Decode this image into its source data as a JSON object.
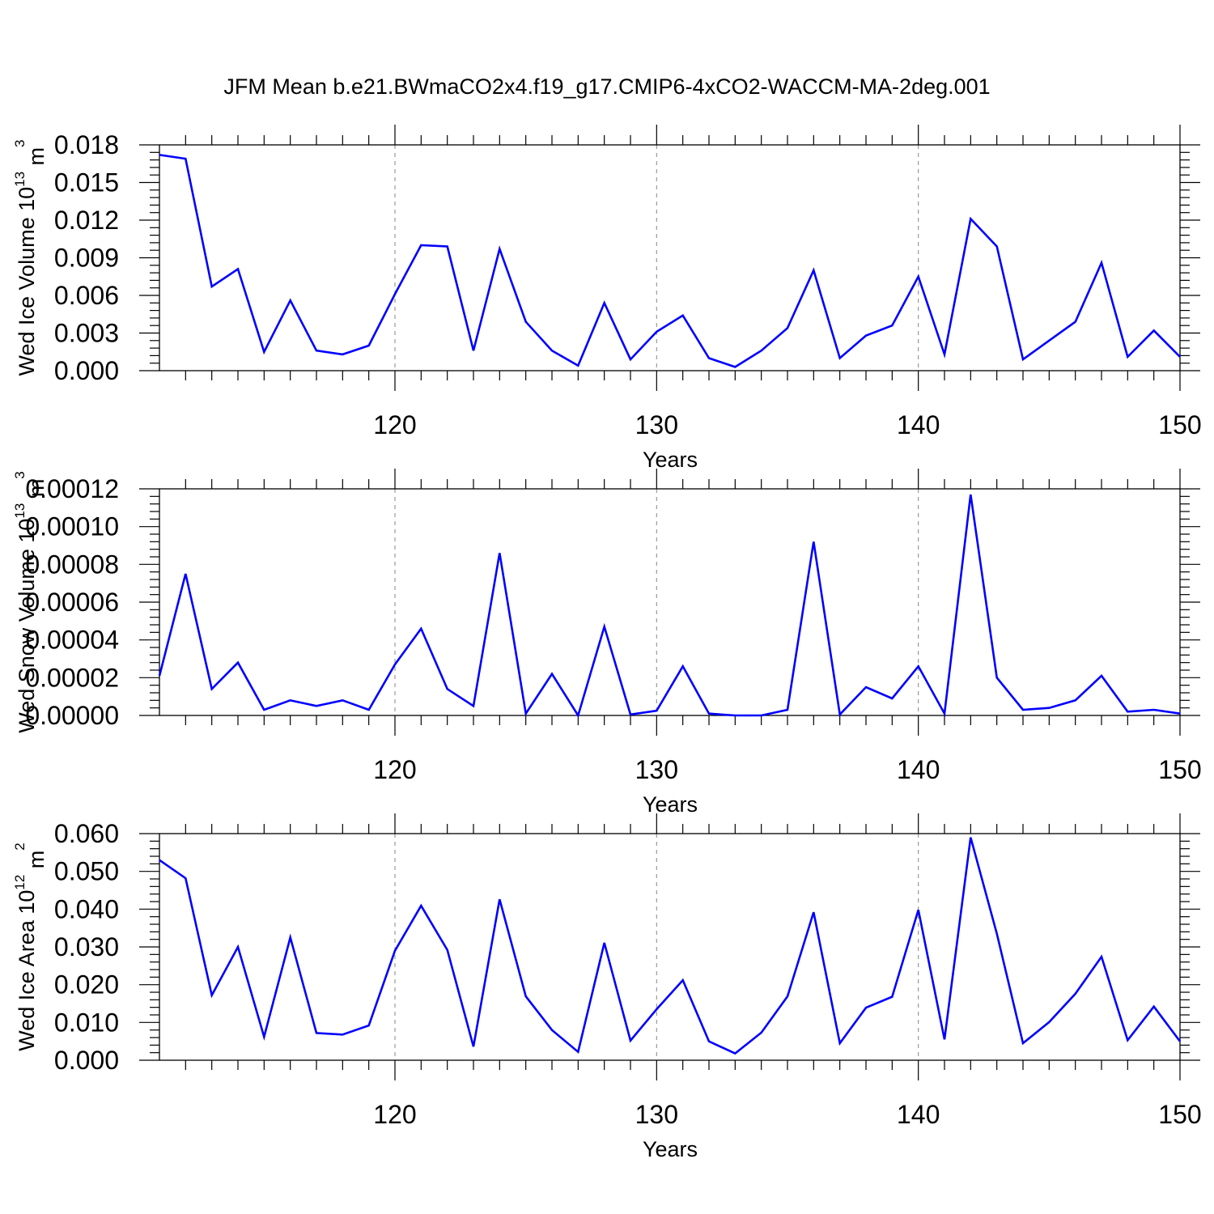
{
  "page_title": "JFM Mean b.e21.BWmaCO2x4.f19_g17.CMIP6-4xCO2-WACCM-MA-2deg.001",
  "colors": {
    "series": "#0000ff",
    "axes": "#000000",
    "grid": "#999999"
  },
  "chart_data": [
    {
      "type": "line",
      "ylabel": "Wed Ice Volume 10",
      "ylabel_sup": "13",
      "ylabel_unit": " m",
      "ylabel_unit_sup": "3",
      "xlabel": "Years",
      "xlim": [
        111,
        150
      ],
      "ylim": [
        0,
        0.018
      ],
      "yticks": [
        "0.000",
        "0.003",
        "0.006",
        "0.009",
        "0.012",
        "0.015",
        "0.018"
      ],
      "xticks": [
        "120",
        "130",
        "140",
        "150"
      ],
      "grid": "dashed vertical at major x ticks",
      "x": [
        111,
        112,
        113,
        114,
        115,
        116,
        117,
        118,
        119,
        120,
        121,
        122,
        123,
        124,
        125,
        126,
        127,
        128,
        129,
        130,
        131,
        132,
        133,
        134,
        135,
        136,
        137,
        138,
        139,
        140,
        141,
        142,
        143,
        144,
        145,
        146,
        147,
        148,
        149,
        150
      ],
      "values": [
        0.0172,
        0.0169,
        0.0067,
        0.0081,
        0.0015,
        0.0056,
        0.0016,
        0.0013,
        0.002,
        0.0061,
        0.01,
        0.0099,
        0.0016,
        0.0097,
        0.0039,
        0.0016,
        0.0004,
        0.0054,
        0.0009,
        0.0031,
        0.0044,
        0.001,
        0.0003,
        0.0016,
        0.0034,
        0.008,
        0.001,
        0.0028,
        0.0036,
        0.0075,
        0.0013,
        0.0121,
        0.0099,
        0.0009,
        0.0024,
        0.0039,
        0.0086,
        0.0011,
        0.0032,
        0.0011
      ]
    },
    {
      "type": "line",
      "ylabel": "Wed Snow Volume 10",
      "ylabel_sup": "13",
      "ylabel_unit": " m",
      "ylabel_unit_sup": "3",
      "xlabel": "Years",
      "xlim": [
        111,
        150
      ],
      "ylim": [
        0,
        0.00012
      ],
      "yticks": [
        "0.00000",
        "0.00002",
        "0.00004",
        "0.00006",
        "0.00008",
        "0.00010",
        "0.00012"
      ],
      "xticks": [
        "120",
        "130",
        "140",
        "150"
      ],
      "grid": "dashed vertical at major x ticks",
      "x": [
        111,
        112,
        113,
        114,
        115,
        116,
        117,
        118,
        119,
        120,
        121,
        122,
        123,
        124,
        125,
        126,
        127,
        128,
        129,
        130,
        131,
        132,
        133,
        134,
        135,
        136,
        137,
        138,
        139,
        140,
        141,
        142,
        143,
        144,
        145,
        146,
        147,
        148,
        149,
        150
      ],
      "values": [
        2.1e-05,
        7.5e-05,
        1.4e-05,
        2.8e-05,
        3e-06,
        8e-06,
        5e-06,
        8e-06,
        3e-06,
        2.7e-05,
        4.6e-05,
        1.4e-05,
        5e-06,
        8.6e-05,
        1e-06,
        2.2e-05,
        0.0,
        4.7e-05,
        5e-07,
        2.5e-06,
        2.6e-05,
        1e-06,
        0.0,
        0.0,
        3e-06,
        9.2e-05,
        5e-07,
        1.5e-05,
        9e-06,
        2.6e-05,
        1e-06,
        0.000117,
        2e-05,
        3e-06,
        4e-06,
        8e-06,
        2.1e-05,
        2e-06,
        3e-06,
        1e-06
      ]
    },
    {
      "type": "line",
      "ylabel": "Wed Ice Area 10",
      "ylabel_sup": "12",
      "ylabel_unit": " m",
      "ylabel_unit_sup": "2",
      "xlabel": "Years",
      "xlim": [
        111,
        150
      ],
      "ylim": [
        0,
        0.06
      ],
      "yticks": [
        "0.000",
        "0.010",
        "0.020",
        "0.030",
        "0.040",
        "0.050",
        "0.060"
      ],
      "xticks": [
        "120",
        "130",
        "140",
        "150"
      ],
      "grid": "dashed vertical at major x ticks",
      "x": [
        111,
        112,
        113,
        114,
        115,
        116,
        117,
        118,
        119,
        120,
        121,
        122,
        123,
        124,
        125,
        126,
        127,
        128,
        129,
        130,
        131,
        132,
        133,
        134,
        135,
        136,
        137,
        138,
        139,
        140,
        141,
        142,
        143,
        144,
        145,
        146,
        147,
        148,
        149,
        150
      ],
      "values": [
        0.053,
        0.0482,
        0.0172,
        0.03,
        0.0062,
        0.0325,
        0.0072,
        0.0068,
        0.0092,
        0.029,
        0.0409,
        0.0292,
        0.0036,
        0.0426,
        0.0169,
        0.008,
        0.0022,
        0.0311,
        0.0052,
        0.0135,
        0.0212,
        0.005,
        0.0018,
        0.0073,
        0.0169,
        0.0392,
        0.0045,
        0.0139,
        0.0168,
        0.0398,
        0.0055,
        0.059,
        0.0335,
        0.0045,
        0.0101,
        0.0176,
        0.0274,
        0.0053,
        0.0142,
        0.005
      ]
    }
  ]
}
